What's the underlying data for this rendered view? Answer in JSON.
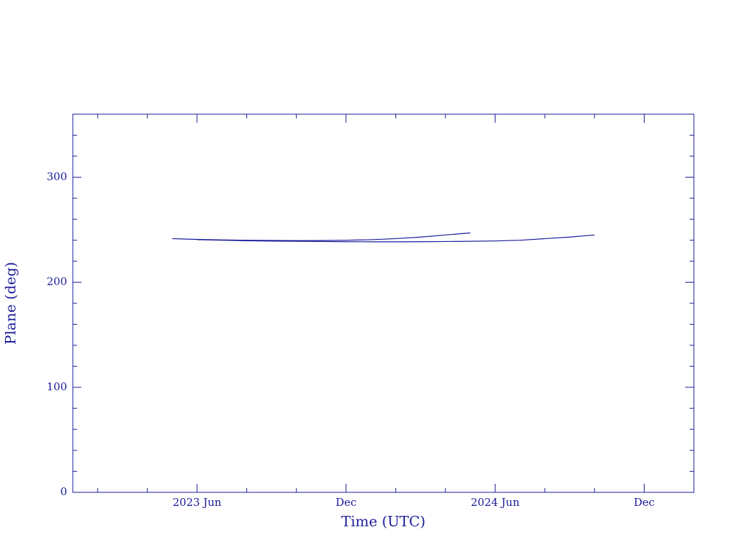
{
  "chart_data": {
    "type": "line",
    "x_label": "Time (UTC)",
    "y_label": "Plane (deg)",
    "xlim": [
      "2023-01",
      "2025-02"
    ],
    "xticks": [
      {
        "value": "2023-06",
        "label": "2023 Jun"
      },
      {
        "value": "2023-12",
        "label": "Dec"
      },
      {
        "value": "2024-06",
        "label": "2024 Jun"
      },
      {
        "value": "2024-12",
        "label": "Dec"
      }
    ],
    "xminorticks": [
      "2023-02",
      "2023-04",
      "2023-08",
      "2023-10",
      "2024-02",
      "2024-04",
      "2024-08",
      "2024-10"
    ],
    "ylim": [
      0,
      360
    ],
    "yticks": [
      0,
      100,
      200,
      300
    ],
    "yminorticks": [
      20,
      40,
      60,
      80,
      120,
      140,
      160,
      180,
      220,
      240,
      260,
      280,
      320,
      340
    ],
    "series": [
      {
        "color": "#1a1a9a",
        "x": [
          "2023-05",
          "2023-06",
          "2023-07",
          "2023-08",
          "2023-09",
          "2023-10",
          "2023-11",
          "2023-12",
          "2024-01",
          "2024-02",
          "2024-03",
          "2024-04",
          "2024-05"
        ],
        "values": [
          241.5,
          240.8,
          240.3,
          240,
          239.8,
          239.6,
          239.7,
          240,
          240.5,
          241.5,
          243,
          245,
          247
        ]
      },
      {
        "color": "#1a1a9a",
        "x": [
          "2023-06",
          "2023-07",
          "2023-08",
          "2023-09",
          "2023-10",
          "2023-11",
          "2023-12",
          "2024-01",
          "2024-02",
          "2024-03",
          "2024-04",
          "2024-05",
          "2024-06",
          "2024-07",
          "2024-08",
          "2024-09",
          "2024-10"
        ],
        "values": [
          240.5,
          240,
          239.5,
          239.2,
          239,
          238.8,
          238.6,
          238.5,
          238.5,
          238.6,
          238.8,
          239,
          239.3,
          240,
          241.5,
          243,
          245
        ]
      }
    ]
  }
}
